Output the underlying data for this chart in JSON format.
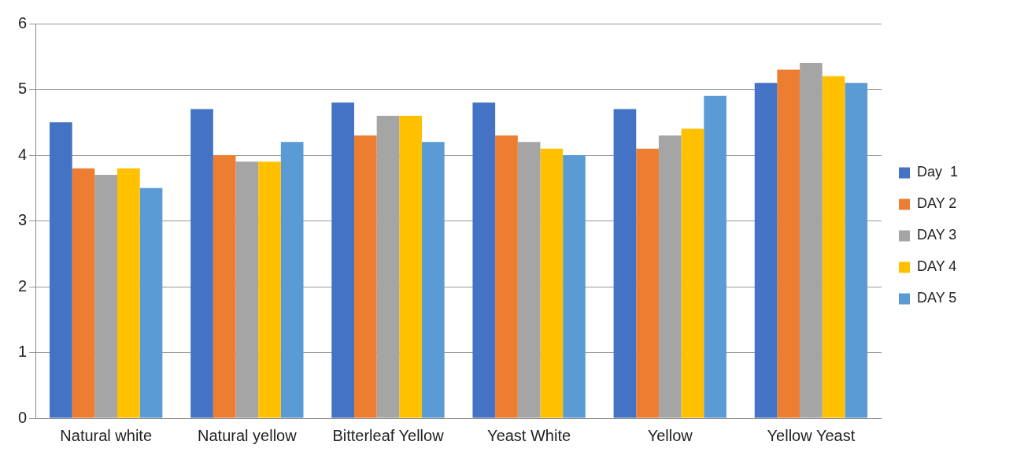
{
  "chart_data": {
    "type": "bar",
    "categories": [
      "Natural white",
      "Natural yellow",
      "Bitterleaf Yellow",
      "Yeast White",
      "Yellow",
      "Yellow Yeast"
    ],
    "series": [
      {
        "name": "Day  1",
        "color": "#4472c4",
        "values": [
          4.5,
          4.7,
          4.8,
          4.8,
          4.7,
          5.1
        ]
      },
      {
        "name": "DAY 2",
        "color": "#ed7d31",
        "values": [
          3.8,
          4.0,
          4.3,
          4.3,
          4.1,
          5.3
        ]
      },
      {
        "name": "DAY 3",
        "color": "#a5a5a5",
        "values": [
          3.7,
          3.9,
          4.6,
          4.2,
          4.3,
          5.4
        ]
      },
      {
        "name": "DAY 4",
        "color": "#ffc000",
        "values": [
          3.8,
          3.9,
          4.6,
          4.1,
          4.4,
          5.2
        ]
      },
      {
        "name": "DAY 5",
        "color": "#5b9bd5",
        "values": [
          3.5,
          4.2,
          4.2,
          4.0,
          4.9,
          5.1
        ]
      }
    ],
    "ylim": [
      0,
      6
    ],
    "yticks": [
      0,
      1,
      2,
      3,
      4,
      5,
      6
    ],
    "grid": "y",
    "legend": "right"
  }
}
